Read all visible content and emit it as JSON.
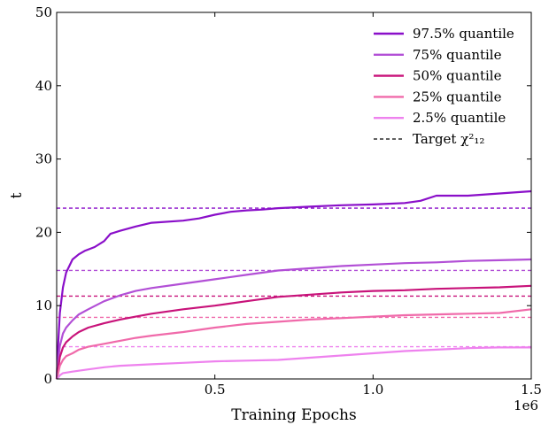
{
  "chart_data": {
    "type": "line",
    "title": "",
    "xlabel": "Training Epochs",
    "ylabel": "t",
    "x_offset_label": "1e6",
    "xlim": [
      0,
      1.5
    ],
    "ylim": [
      0,
      50
    ],
    "x_ticks": [
      0.5,
      1.0,
      1.5
    ],
    "x_tick_labels": [
      "0.5",
      "1.0",
      "1.5"
    ],
    "y_ticks": [
      0,
      10,
      20,
      30,
      40,
      50
    ],
    "y_tick_labels": [
      "0",
      "10",
      "20",
      "30",
      "40",
      "50"
    ],
    "grid": false,
    "legend_position": "top-right",
    "legend_target_label": "Target χ²₁₂",
    "series": [
      {
        "name": "97.5% quantile",
        "color": "#8a0fc9",
        "target": 23.3,
        "x": [
          0.0,
          0.005,
          0.01,
          0.02,
          0.03,
          0.05,
          0.07,
          0.09,
          0.12,
          0.15,
          0.17,
          0.2,
          0.25,
          0.3,
          0.4,
          0.45,
          0.5,
          0.55,
          0.6,
          0.65,
          0.7,
          0.8,
          0.9,
          1.0,
          1.05,
          1.1,
          1.15,
          1.2,
          1.3,
          1.4,
          1.5
        ],
        "y": [
          0.0,
          5.0,
          9.0,
          12.5,
          14.5,
          16.3,
          17.0,
          17.5,
          18.0,
          18.8,
          19.8,
          20.2,
          20.8,
          21.3,
          21.6,
          21.9,
          22.4,
          22.8,
          23.0,
          23.1,
          23.3,
          23.5,
          23.7,
          23.8,
          23.9,
          24.0,
          24.3,
          25.0,
          25.0,
          25.3,
          25.6
        ]
      },
      {
        "name": "75% quantile",
        "color": "#b24fd6",
        "target": 14.8,
        "x": [
          0.0,
          0.005,
          0.01,
          0.02,
          0.03,
          0.05,
          0.07,
          0.1,
          0.15,
          0.2,
          0.25,
          0.3,
          0.4,
          0.5,
          0.6,
          0.7,
          0.8,
          0.9,
          1.0,
          1.1,
          1.2,
          1.3,
          1.4,
          1.5
        ],
        "y": [
          0.0,
          2.5,
          4.5,
          6.2,
          7.0,
          8.0,
          8.8,
          9.5,
          10.6,
          11.4,
          12.0,
          12.4,
          13.0,
          13.6,
          14.2,
          14.8,
          15.1,
          15.4,
          15.6,
          15.8,
          15.9,
          16.1,
          16.2,
          16.3
        ]
      },
      {
        "name": "50% quantile",
        "color": "#c8137a",
        "target": 11.3,
        "x": [
          0.0,
          0.005,
          0.01,
          0.02,
          0.03,
          0.05,
          0.07,
          0.1,
          0.15,
          0.2,
          0.25,
          0.3,
          0.4,
          0.5,
          0.6,
          0.7,
          0.8,
          0.9,
          1.0,
          1.1,
          1.2,
          1.3,
          1.4,
          1.5
        ],
        "y": [
          0.0,
          1.5,
          3.0,
          4.3,
          5.0,
          5.8,
          6.4,
          7.0,
          7.6,
          8.1,
          8.5,
          8.9,
          9.5,
          10.0,
          10.6,
          11.2,
          11.5,
          11.8,
          12.0,
          12.1,
          12.3,
          12.4,
          12.5,
          12.7
        ]
      },
      {
        "name": "25% quantile",
        "color": "#f06aaa",
        "target": 8.4,
        "x": [
          0.0,
          0.005,
          0.01,
          0.02,
          0.03,
          0.05,
          0.07,
          0.1,
          0.15,
          0.2,
          0.25,
          0.3,
          0.4,
          0.5,
          0.6,
          0.7,
          0.8,
          0.9,
          1.0,
          1.1,
          1.2,
          1.3,
          1.4,
          1.5
        ],
        "y": [
          0.0,
          0.8,
          1.8,
          2.6,
          3.1,
          3.5,
          4.0,
          4.4,
          4.8,
          5.2,
          5.6,
          5.9,
          6.4,
          7.0,
          7.5,
          7.8,
          8.1,
          8.3,
          8.5,
          8.7,
          8.8,
          8.9,
          9.0,
          9.5
        ]
      },
      {
        "name": "2.5% quantile",
        "color": "#ee82ee",
        "target": 4.4,
        "x": [
          0.0,
          0.005,
          0.01,
          0.02,
          0.05,
          0.1,
          0.15,
          0.2,
          0.3,
          0.4,
          0.5,
          0.6,
          0.7,
          0.8,
          0.9,
          1.0,
          1.1,
          1.2,
          1.3,
          1.4,
          1.5
        ],
        "y": [
          0.0,
          0.2,
          0.5,
          0.8,
          1.0,
          1.3,
          1.6,
          1.8,
          2.0,
          2.2,
          2.4,
          2.5,
          2.6,
          2.9,
          3.2,
          3.5,
          3.8,
          4.0,
          4.2,
          4.3,
          4.3
        ]
      }
    ]
  }
}
